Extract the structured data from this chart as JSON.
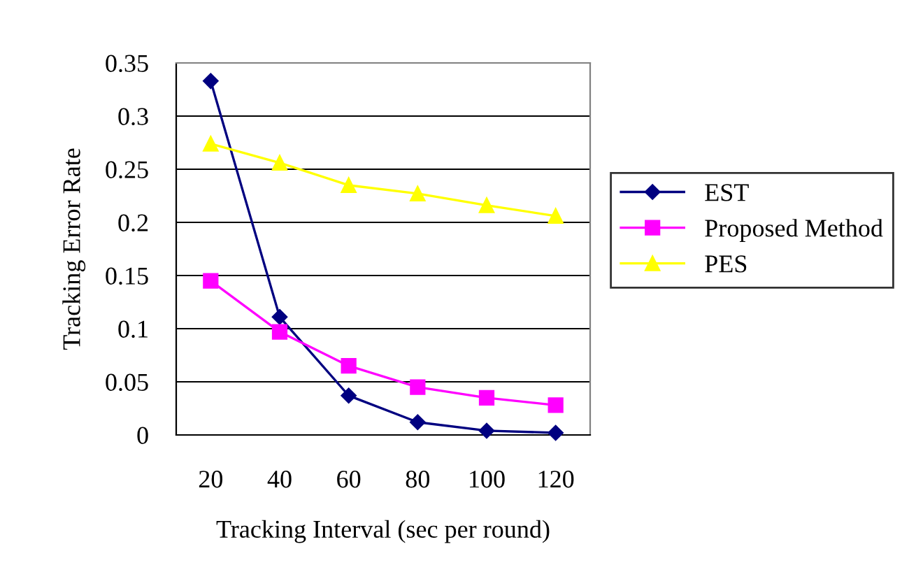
{
  "chart_data": {
    "type": "line",
    "xlabel": "Tracking Interval (sec per round)",
    "ylabel": "Tracking Error Rate",
    "categories": [
      "20",
      "40",
      "60",
      "80",
      "100",
      "120"
    ],
    "series": [
      {
        "name": "EST",
        "color": "#000080",
        "marker": "diamond",
        "values": [
          0.333,
          0.111,
          0.037,
          0.012,
          0.004,
          0.002
        ]
      },
      {
        "name": "Proposed Method",
        "color": "#ff00ff",
        "marker": "square",
        "values": [
          0.145,
          0.097,
          0.065,
          0.045,
          0.035,
          0.028
        ]
      },
      {
        "name": "PES",
        "color": "#ffff00",
        "marker": "triangle",
        "values": [
          0.274,
          0.256,
          0.235,
          0.227,
          0.216,
          0.206
        ]
      }
    ],
    "ylim": [
      0,
      0.35
    ],
    "yticks": [
      0,
      0.05,
      0.1,
      0.15,
      0.2,
      0.25,
      0.3,
      0.35
    ],
    "grid": "y",
    "legend": "right"
  }
}
